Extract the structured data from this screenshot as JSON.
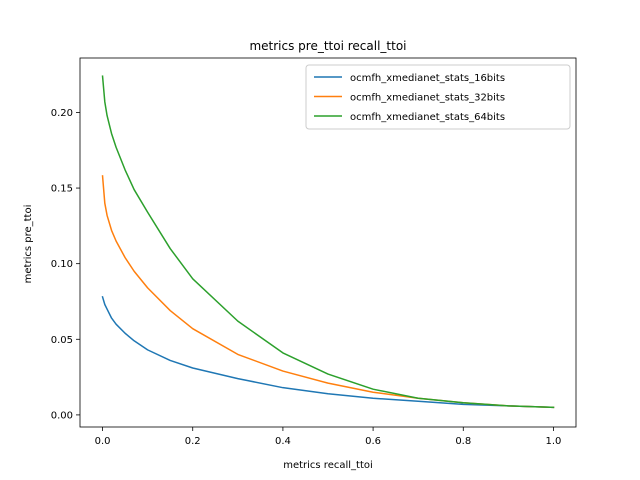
{
  "chart_data": {
    "type": "line",
    "title": "metrics pre_ttoi recall_ttoi",
    "xlabel": "metrics recall_ttoi",
    "ylabel": "metrics pre_ttoi",
    "xlim": [
      -0.05,
      1.05
    ],
    "ylim": [
      -0.008,
      0.236
    ],
    "xticks": [
      0.0,
      0.2,
      0.4,
      0.6,
      0.8,
      1.0
    ],
    "xtick_labels": [
      "0.0",
      "0.2",
      "0.4",
      "0.6",
      "0.8",
      "1.0"
    ],
    "yticks": [
      0.0,
      0.05,
      0.1,
      0.15,
      0.2
    ],
    "ytick_labels": [
      "0.00",
      "0.05",
      "0.10",
      "0.15",
      "0.20"
    ],
    "grid": false,
    "legend_position": "top-right",
    "series": [
      {
        "name": "ocmfh_xmedianet_stats_16bits",
        "color": "#1f77b4",
        "x": [
          0.0,
          0.005,
          0.01,
          0.02,
          0.03,
          0.05,
          0.07,
          0.1,
          0.15,
          0.2,
          0.3,
          0.4,
          0.5,
          0.6,
          0.7,
          0.8,
          0.9,
          1.0
        ],
        "y": [
          0.078,
          0.073,
          0.07,
          0.064,
          0.06,
          0.054,
          0.049,
          0.043,
          0.036,
          0.031,
          0.024,
          0.018,
          0.014,
          0.011,
          0.009,
          0.007,
          0.006,
          0.005
        ]
      },
      {
        "name": "ocmfh_xmedianet_stats_32bits",
        "color": "#ff7f0e",
        "x": [
          0.0,
          0.005,
          0.01,
          0.02,
          0.03,
          0.05,
          0.07,
          0.1,
          0.15,
          0.2,
          0.3,
          0.4,
          0.5,
          0.6,
          0.7,
          0.8,
          0.9,
          1.0
        ],
        "y": [
          0.158,
          0.14,
          0.132,
          0.122,
          0.115,
          0.104,
          0.095,
          0.084,
          0.069,
          0.057,
          0.04,
          0.029,
          0.021,
          0.015,
          0.011,
          0.008,
          0.006,
          0.005
        ]
      },
      {
        "name": "ocmfh_xmedianet_stats_64bits",
        "color": "#2ca02c",
        "x": [
          0.0,
          0.005,
          0.01,
          0.02,
          0.03,
          0.05,
          0.07,
          0.1,
          0.15,
          0.2,
          0.3,
          0.4,
          0.5,
          0.6,
          0.7,
          0.8,
          0.9,
          1.0
        ],
        "y": [
          0.224,
          0.207,
          0.198,
          0.186,
          0.177,
          0.162,
          0.149,
          0.134,
          0.11,
          0.09,
          0.062,
          0.041,
          0.027,
          0.017,
          0.011,
          0.008,
          0.006,
          0.005
        ]
      }
    ]
  }
}
